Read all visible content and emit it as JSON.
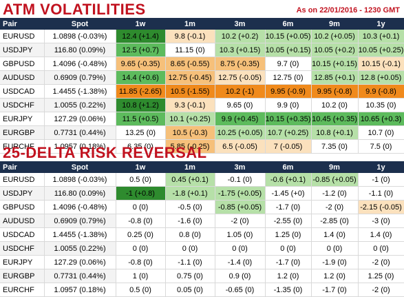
{
  "atm": {
    "title": "ATM VOLATILITIES",
    "asof": "As on 22/01/2016 - 1230 GMT",
    "headers": [
      "Pair",
      "Spot",
      "1w",
      "1m",
      "3m",
      "6m",
      "9m",
      "1y"
    ],
    "rows": [
      {
        "pair": "EURUSD",
        "spot": "1.0898 (-0.03%)",
        "cells": [
          [
            "12.4 (+1.4)",
            "dg"
          ],
          [
            "9.8 (-0.1)",
            "pe"
          ],
          [
            "10.2 (+0.2)",
            "lg"
          ],
          [
            "10.15 (+0.05)",
            "lg"
          ],
          [
            "10.2 (+0.05)",
            "lg"
          ],
          [
            "10.3 (+0.1)",
            "lg"
          ]
        ]
      },
      {
        "pair": "USDJPY",
        "spot": "116.80 (0.09%)",
        "cells": [
          [
            "12.5 (+0.7)",
            "mg"
          ],
          [
            "11.15 (0)",
            "w"
          ],
          [
            "10.3 (+0.15)",
            "lg"
          ],
          [
            "10.05 (+0.15)",
            "lg"
          ],
          [
            "10.05 (+0.2)",
            "lg"
          ],
          [
            "10.05 (+0.25)",
            "lg"
          ]
        ]
      },
      {
        "pair": "GBPUSD",
        "spot": "1.4096 (-0.48%)",
        "cells": [
          [
            "9.65 (-0.35)",
            "lo"
          ],
          [
            "8.65 (-0.55)",
            "lo"
          ],
          [
            "8.75 (-0.35)",
            "lo"
          ],
          [
            "9.7 (0)",
            "w"
          ],
          [
            "10.15 (+0.15)",
            "lg"
          ],
          [
            "10.15 (-0.1)",
            "pe"
          ]
        ]
      },
      {
        "pair": "AUDUSD",
        "spot": "0.6909 (0.79%)",
        "cells": [
          [
            "14.4 (+0.6)",
            "mg"
          ],
          [
            "12.75 (-0.45)",
            "lo"
          ],
          [
            "12.75 (-0.05)",
            "pe"
          ],
          [
            "12.75 (0)",
            "w"
          ],
          [
            "12.85 (+0.1)",
            "lg"
          ],
          [
            "12.8 (+0.05)",
            "lg"
          ]
        ]
      },
      {
        "pair": "USDCAD",
        "spot": "1.4455 (-1.38%)",
        "cells": [
          [
            "11.85 (-2.65)",
            "or"
          ],
          [
            "10.5 (-1.55)",
            "or"
          ],
          [
            "10.2 (-1)",
            "or"
          ],
          [
            "9.95 (-0.9)",
            "or"
          ],
          [
            "9.95 (-0.8)",
            "or"
          ],
          [
            "9.9 (-0.8)",
            "or"
          ]
        ]
      },
      {
        "pair": "USDCHF",
        "spot": "1.0055 (0.22%)",
        "cells": [
          [
            "10.8 (+1.2)",
            "dg"
          ],
          [
            "9.3 (-0.1)",
            "pe"
          ],
          [
            "9.65 (0)",
            "w"
          ],
          [
            "9.9 (0)",
            "w"
          ],
          [
            "10.2 (0)",
            "w"
          ],
          [
            "10.35 (0)",
            "w"
          ]
        ]
      },
      {
        "pair": "EURJPY",
        "spot": "127.29 (0.06%)",
        "cells": [
          [
            "11.5 (+0.5)",
            "mg"
          ],
          [
            "10.1 (+0.25)",
            "lg"
          ],
          [
            "9.9 (+0.45)",
            "mg"
          ],
          [
            "10.15 (+0.35)",
            "mg"
          ],
          [
            "10.45 (+0.35)",
            "mg"
          ],
          [
            "10.65 (+0.3)",
            "mg"
          ]
        ]
      },
      {
        "pair": "EURGBP",
        "spot": "0.7731 (0.44%)",
        "cells": [
          [
            "13.25 (0)",
            "w"
          ],
          [
            "10.5 (-0.3)",
            "lo"
          ],
          [
            "10.25 (+0.05)",
            "lg"
          ],
          [
            "10.7 (+0.25)",
            "lg"
          ],
          [
            "10.8 (+0.1)",
            "lg"
          ],
          [
            "10.7 (0)",
            "w"
          ]
        ]
      },
      {
        "pair": "EURCHF",
        "spot": "1.0957 (0.18%)",
        "cells": [
          [
            "6.35 (0)",
            "w"
          ],
          [
            "5.85 (-0.25)",
            "lo"
          ],
          [
            "6.5 (-0.05)",
            "pe"
          ],
          [
            "7 (-0.05)",
            "pe"
          ],
          [
            "7.35 (0)",
            "w"
          ],
          [
            "7.5 (0)",
            "w"
          ]
        ]
      }
    ]
  },
  "rr": {
    "title": "25-DELTA RISK REVERSAL",
    "headers": [
      "Pair",
      "Spot",
      "1w",
      "1m",
      "3m",
      "6m",
      "9m",
      "1y"
    ],
    "rows": [
      {
        "pair": "EURUSD",
        "spot": "1.0898 (-0.03%)",
        "cells": [
          [
            "0.5 (0)",
            "w"
          ],
          [
            "0.45 (+0.1)",
            "lg"
          ],
          [
            "-0.1 (0)",
            "w"
          ],
          [
            "-0.6 (+0.1)",
            "lg"
          ],
          [
            "-0.85 (+0.05)",
            "lg"
          ],
          [
            "-1 (0)",
            "w"
          ]
        ]
      },
      {
        "pair": "USDJPY",
        "spot": "116.80 (0.09%)",
        "cells": [
          [
            "-1 (+0.8)",
            "dg"
          ],
          [
            "-1.8 (+0.1)",
            "lg"
          ],
          [
            "-1.75 (+0.05)",
            "lg"
          ],
          [
            "-1.45 (+0)",
            "w"
          ],
          [
            "-1.2 (0)",
            "w"
          ],
          [
            "-1.1 (0)",
            "w"
          ]
        ]
      },
      {
        "pair": "GBPUSD",
        "spot": "1.4096 (-0.48%)",
        "cells": [
          [
            "0 (0)",
            "w"
          ],
          [
            "-0.5 (0)",
            "w"
          ],
          [
            "-0.85 (+0.05)",
            "lg"
          ],
          [
            "-1.7 (0)",
            "w"
          ],
          [
            "-2 (0)",
            "w"
          ],
          [
            "-2.15 (-0.05)",
            "pe"
          ]
        ]
      },
      {
        "pair": "AUDUSD",
        "spot": "0.6909 (0.79%)",
        "cells": [
          [
            "-0.8 (0)",
            "w"
          ],
          [
            "-1.6 (0)",
            "w"
          ],
          [
            "-2 (0)",
            "w"
          ],
          [
            "-2.55 (0)",
            "w"
          ],
          [
            "-2.85 (0)",
            "w"
          ],
          [
            "-3 (0)",
            "w"
          ]
        ]
      },
      {
        "pair": "USDCAD",
        "spot": "1.4455 (-1.38%)",
        "cells": [
          [
            "0.25 (0)",
            "w"
          ],
          [
            "0.8 (0)",
            "w"
          ],
          [
            "1.05 (0)",
            "w"
          ],
          [
            "1.25 (0)",
            "w"
          ],
          [
            "1.4 (0)",
            "w"
          ],
          [
            "1.4 (0)",
            "w"
          ]
        ]
      },
      {
        "pair": "USDCHF",
        "spot": "1.0055 (0.22%)",
        "cells": [
          [
            "0 (0)",
            "w"
          ],
          [
            "0 (0)",
            "w"
          ],
          [
            "0 (0)",
            "w"
          ],
          [
            "0 (0)",
            "w"
          ],
          [
            "0 (0)",
            "w"
          ],
          [
            "0 (0)",
            "w"
          ]
        ]
      },
      {
        "pair": "EURJPY",
        "spot": "127.29 (0.06%)",
        "cells": [
          [
            "-0.8 (0)",
            "w"
          ],
          [
            "-1.1 (0)",
            "w"
          ],
          [
            "-1.4 (0)",
            "w"
          ],
          [
            "-1.7 (0)",
            "w"
          ],
          [
            "-1.9 (0)",
            "w"
          ],
          [
            "-2 (0)",
            "w"
          ]
        ]
      },
      {
        "pair": "EURGBP",
        "spot": "0.7731 (0.44%)",
        "cells": [
          [
            "1 (0)",
            "w"
          ],
          [
            "0.75 (0)",
            "w"
          ],
          [
            "0.9 (0)",
            "w"
          ],
          [
            "1.2 (0)",
            "w"
          ],
          [
            "1.2 (0)",
            "w"
          ],
          [
            "1.25 (0)",
            "w"
          ]
        ]
      },
      {
        "pair": "EURCHF",
        "spot": "1.0957 (0.18%)",
        "cells": [
          [
            "0.5 (0)",
            "w"
          ],
          [
            "0.05 (0)",
            "w"
          ],
          [
            "-0.65 (0)",
            "w"
          ],
          [
            "-1.35 (0)",
            "w"
          ],
          [
            "-1.7 (0)",
            "w"
          ],
          [
            "-2 (0)",
            "w"
          ]
        ]
      }
    ]
  }
}
